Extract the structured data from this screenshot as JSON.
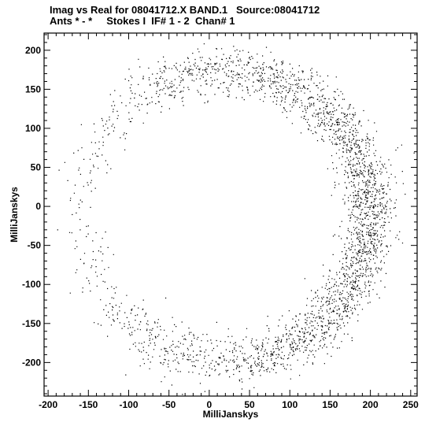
{
  "chart_data": {
    "type": "scatter",
    "title_line1": "Imag vs Real for 08041712.X BAND.1   Source:08041712",
    "title_line2": "Ants * - *     Stokes I  IF# 1 - 2  Chan# 1",
    "xlabel": "MilliJanskys",
    "ylabel": "MilliJanskys",
    "xlim": [
      -205,
      258
    ],
    "ylim": [
      -243,
      222
    ],
    "xticks": [
      -200,
      -150,
      -100,
      -50,
      0,
      50,
      100,
      150,
      200,
      250
    ],
    "yticks": [
      -200,
      -150,
      -100,
      -50,
      0,
      50,
      100,
      150,
      200
    ],
    "point_color": "#000000",
    "distribution": {
      "shape": "ring",
      "center": [
        20,
        -10
      ],
      "radius_x": 180,
      "radius_y": 185,
      "ring_width": 28,
      "approx_points": 12000,
      "density_profile": [
        {
          "angle_deg": 0,
          "weight": 1.0
        },
        {
          "angle_deg": 30,
          "weight": 0.9
        },
        {
          "angle_deg": 60,
          "weight": 0.75
        },
        {
          "angle_deg": 90,
          "weight": 0.6
        },
        {
          "angle_deg": 120,
          "weight": 0.35
        },
        {
          "angle_deg": 150,
          "weight": 0.12
        },
        {
          "angle_deg": 180,
          "weight": 0.08
        },
        {
          "angle_deg": 210,
          "weight": 0.12
        },
        {
          "angle_deg": 240,
          "weight": 0.3
        },
        {
          "angle_deg": 270,
          "weight": 0.55
        },
        {
          "angle_deg": 300,
          "weight": 0.75
        },
        {
          "angle_deg": 330,
          "weight": 0.9
        }
      ]
    }
  }
}
